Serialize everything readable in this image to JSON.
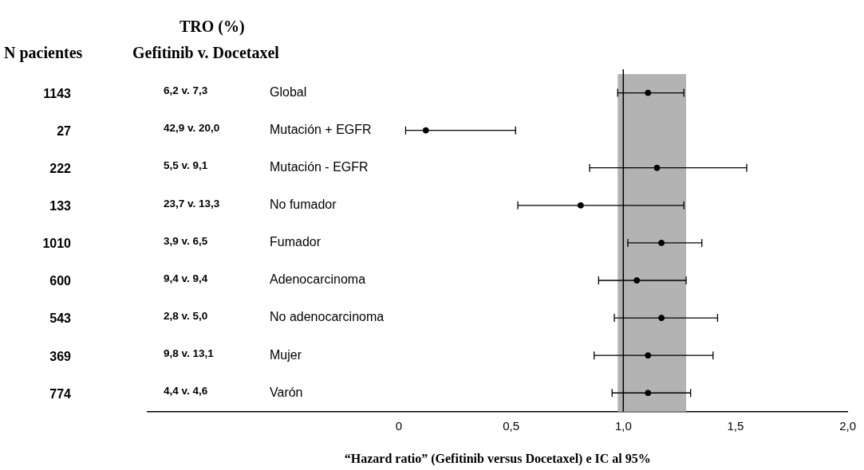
{
  "chart_data": {
    "type": "scatter",
    "orientation": "horizontal",
    "xlabel": "“Hazard ratio” (Gefitinib versus Docetaxel) e IC al 95%",
    "categories": [
      "Global",
      "Mutación + EGFR",
      "Mutación - EGFR",
      "No fumador",
      "Fumador",
      "Adenocarcinoma",
      "No adenocarcinoma",
      "Mujer",
      "Varón"
    ],
    "values": [
      1.11,
      0.12,
      1.15,
      0.81,
      1.17,
      1.06,
      1.17,
      1.11,
      1.11
    ],
    "errors": [
      [
        0.975,
        1.27
      ],
      [
        0.03,
        0.52
      ],
      [
        0.85,
        1.55
      ],
      [
        0.53,
        1.27
      ],
      [
        1.02,
        1.35
      ],
      [
        0.89,
        1.28
      ],
      [
        0.96,
        1.42
      ],
      [
        0.87,
        1.4
      ],
      [
        0.95,
        1.3
      ]
    ],
    "color": "#000000",
    "marker": "circle",
    "xlim": [
      -1.12,
      2.0
    ],
    "xticks": [
      0,
      {
        "value": 0.5,
        "label": "0,5"
      },
      {
        "value": 1,
        "label": "1,0"
      },
      {
        "value": 1.5,
        "label": "1,5"
      },
      {
        "value": 2,
        "label": "2,0"
      }
    ],
    "ref_lines": [
      {
        "axis": "x",
        "value": 1,
        "color": "#000000"
      }
    ],
    "bands": [
      {
        "axis": "x",
        "from": 0.975,
        "to": 1.28,
        "color": "#b3b3b3"
      }
    ],
    "annotations": [
      "N pacientes",
      "TRO (%)",
      "Gefitinib v. Docetaxel",
      "1143",
      "6,2 v. 7,3",
      "27",
      "42,9 v. 20,0",
      "222",
      "5,5 v. 9,1",
      "133",
      "23,7 v. 13,3",
      "1010",
      "3,9 v. 6,5",
      "600",
      "9,4 v. 9,4",
      "543",
      "2,8 v. 5,0",
      "369",
      "9,8 v. 13,1",
      "774",
      "4,4 v. 4,6"
    ]
  }
}
